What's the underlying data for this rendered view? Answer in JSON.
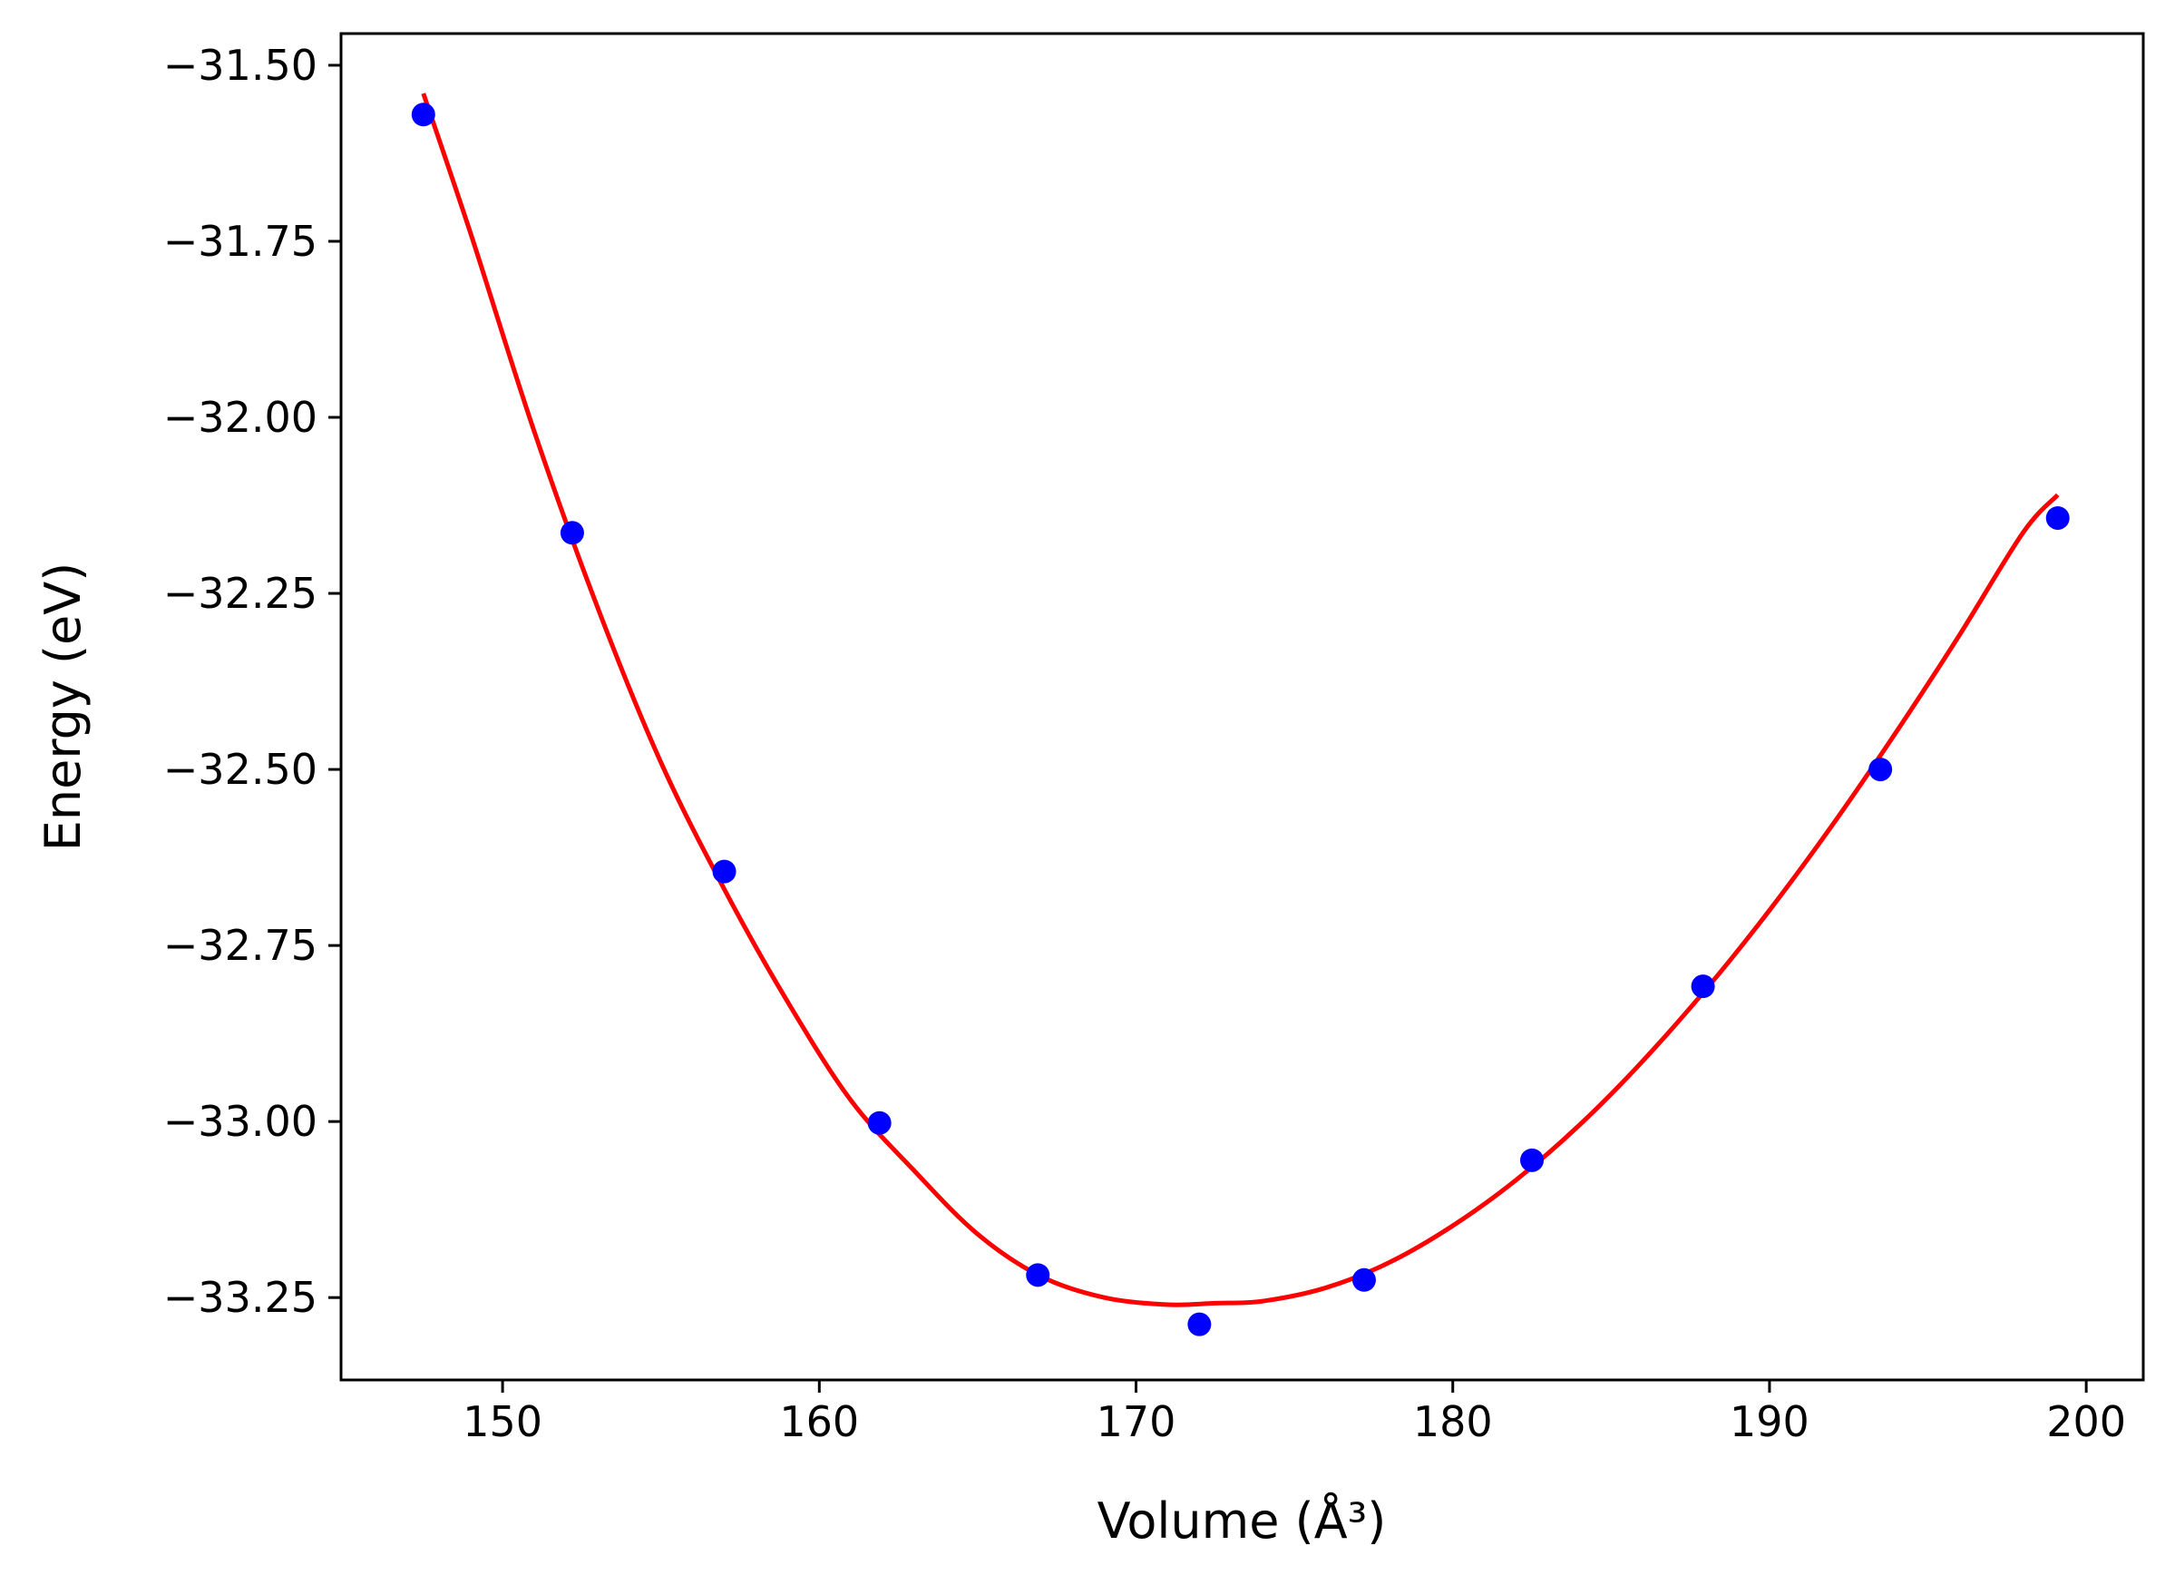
{
  "chart_data": {
    "type": "scatter",
    "xlabel": "Volume (Å³)",
    "ylabel": "Energy (eV)",
    "xlim": [
      144.9,
      201.8
    ],
    "ylim": [
      -33.367,
      -31.455
    ],
    "x_ticks": [
      150,
      160,
      170,
      180,
      190,
      200
    ],
    "x_tick_labels": [
      "150",
      "160",
      "170",
      "180",
      "190",
      "200"
    ],
    "y_ticks": [
      -31.5,
      -31.75,
      -32.0,
      -32.25,
      -32.5,
      -32.75,
      -33.0,
      -33.25
    ],
    "y_tick_labels": [
      "−31.50",
      "−31.75",
      "−32.00",
      "−32.25",
      "−32.50",
      "−32.75",
      "−33.00",
      "−33.25"
    ],
    "grid": false,
    "series": [
      {
        "kind": "points",
        "color": "#0000ff",
        "x": [
          147.5,
          152.2,
          157.0,
          161.9,
          166.9,
          172.0,
          177.2,
          182.5,
          187.9,
          193.5,
          199.1
        ],
        "y": [
          -31.57,
          -32.164,
          -32.645,
          -33.002,
          -33.218,
          -33.288,
          -33.225,
          -33.055,
          -32.808,
          -32.5,
          -32.143
        ]
      },
      {
        "kind": "fit-curve",
        "color": "#ff0000",
        "x": [
          147.5,
          149.0,
          151.0,
          153.0,
          155.0,
          157.0,
          159.0,
          161.0,
          163.0,
          165.0,
          167.0,
          169.0,
          171.0,
          172.5,
          174.0,
          176.0,
          178.0,
          180.0,
          182.0,
          184.0,
          186.0,
          188.0,
          190.0,
          192.0,
          194.0,
          196.0,
          198.0,
          199.1
        ],
        "y": [
          -31.54,
          -31.74,
          -32.02,
          -32.27,
          -32.49,
          -32.67,
          -32.83,
          -32.97,
          -33.07,
          -33.16,
          -33.22,
          -33.25,
          -33.26,
          -33.258,
          -33.255,
          -33.236,
          -33.2,
          -33.148,
          -33.083,
          -33.005,
          -32.914,
          -32.812,
          -32.7,
          -32.578,
          -32.447,
          -32.309,
          -32.164,
          -32.11
        ]
      }
    ]
  }
}
